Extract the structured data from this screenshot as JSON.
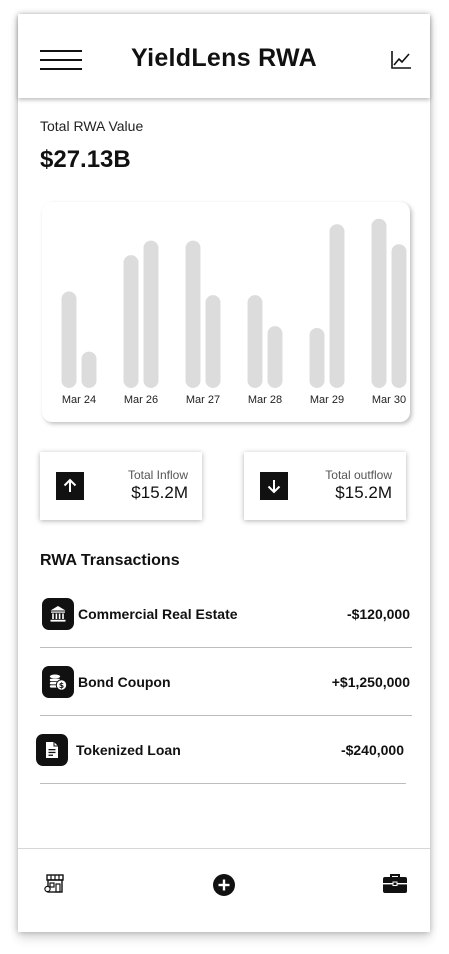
{
  "header": {
    "title": "YieldLens RWA",
    "menu_icon": "hamburger-menu-icon",
    "right_icon": "line-chart-icon"
  },
  "summary": {
    "label": "Total RWA Value",
    "amount": "$27.13B"
  },
  "chart_data": {
    "type": "bar",
    "categories": [
      "Mar 24",
      "Mar 26",
      "Mar 27",
      "Mar 28",
      "Mar 29",
      "Mar 30"
    ],
    "series": [
      {
        "values": [
          53,
          73,
          81,
          51,
          33,
          93
        ]
      },
      {
        "values": [
          20,
          81,
          51,
          34,
          90,
          79
        ]
      }
    ],
    "ylim": [
      0,
      100
    ],
    "grid": false,
    "bar_color": "#dcdcdc"
  },
  "flows": {
    "inflow": {
      "label": "Total Inflow",
      "value": "$15.2M",
      "icon": "arrow-up-icon"
    },
    "outflow": {
      "label": "Total outflow",
      "value": "$15.2M",
      "icon": "arrow-down-icon"
    }
  },
  "transactions": {
    "title": "RWA Transactions",
    "items": [
      {
        "name": "Commercial Real Estate",
        "amount": "-$120,000",
        "icon": "bank-building-icon"
      },
      {
        "name": "Bond Coupon",
        "amount": "+$1,250,000",
        "icon": "coins-icon"
      },
      {
        "name": "Tokenized Loan",
        "amount": "-$240,000",
        "icon": "document-icon"
      }
    ]
  },
  "bottom_nav": {
    "items": [
      {
        "icon": "storefront-icon"
      },
      {
        "icon": "add-circle-icon"
      },
      {
        "icon": "briefcase-icon"
      }
    ]
  },
  "colors": {
    "primary": "#111111",
    "bar": "#dcdcdc",
    "divider": "#bdbdbd"
  }
}
